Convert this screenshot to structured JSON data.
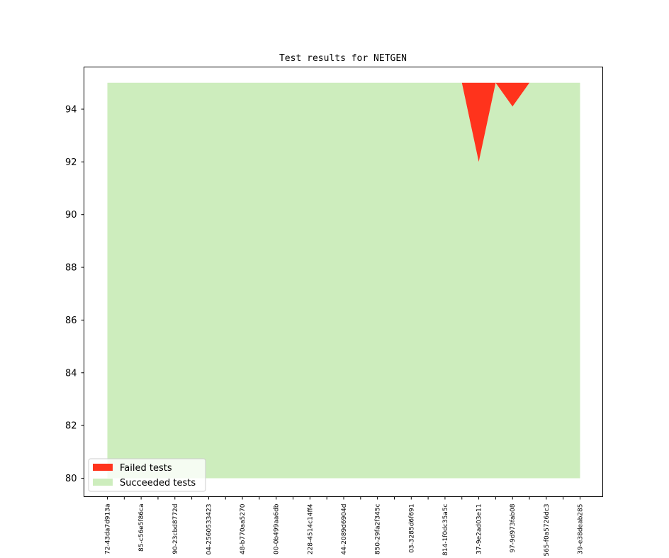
{
  "chart_data": {
    "type": "area",
    "title": "Test results for NETGEN",
    "xlabel": "",
    "ylabel": "",
    "ylim": [
      79.3,
      95.6
    ],
    "yticks": [
      80,
      82,
      84,
      86,
      88,
      90,
      92,
      94
    ],
    "categories": [
      "72-43da7d913a",
      "",
      "85-c56e5f86ca",
      "",
      "90-23cbd8772d",
      "",
      "04-2560533423",
      "",
      "48-b770aa5270",
      "",
      "00-0b499aa6db",
      "",
      "228-4514c14ff4",
      "",
      "44-2089d6904d",
      "",
      "850-29fa2f345c",
      "",
      "03-3285d6f691",
      "",
      "814-1f0dc35a5c",
      "",
      "37-9e2ad03e11",
      "",
      "97-9d973fab08",
      "",
      "565-f0a5726dc3",
      "",
      "39-e38deab285"
    ],
    "series": [
      {
        "name": "Succeeded tests",
        "color": "#cdedbd",
        "values": [
          95,
          95,
          95,
          95,
          95,
          95,
          95,
          95,
          95,
          95,
          95,
          95,
          95,
          95,
          95,
          95,
          95,
          95,
          95,
          95,
          95,
          95,
          92,
          95,
          94.1,
          95,
          95,
          95,
          95
        ]
      },
      {
        "name": "Failed tests",
        "color": "#ff331c",
        "values": [
          0,
          0,
          0,
          0,
          0,
          0,
          0,
          0,
          0,
          0,
          0,
          0,
          0,
          0,
          0,
          0,
          0,
          0,
          0,
          0,
          0,
          0,
          3,
          0,
          0.9,
          0,
          0,
          0,
          0
        ]
      }
    ],
    "baseline": 80,
    "total": 95,
    "legend": {
      "placement": "bottom-left",
      "entries": [
        {
          "label": "Failed tests",
          "color": "#ff331c"
        },
        {
          "label": "Succeeded tests",
          "color": "#cdedbd"
        }
      ]
    },
    "grid": false
  }
}
